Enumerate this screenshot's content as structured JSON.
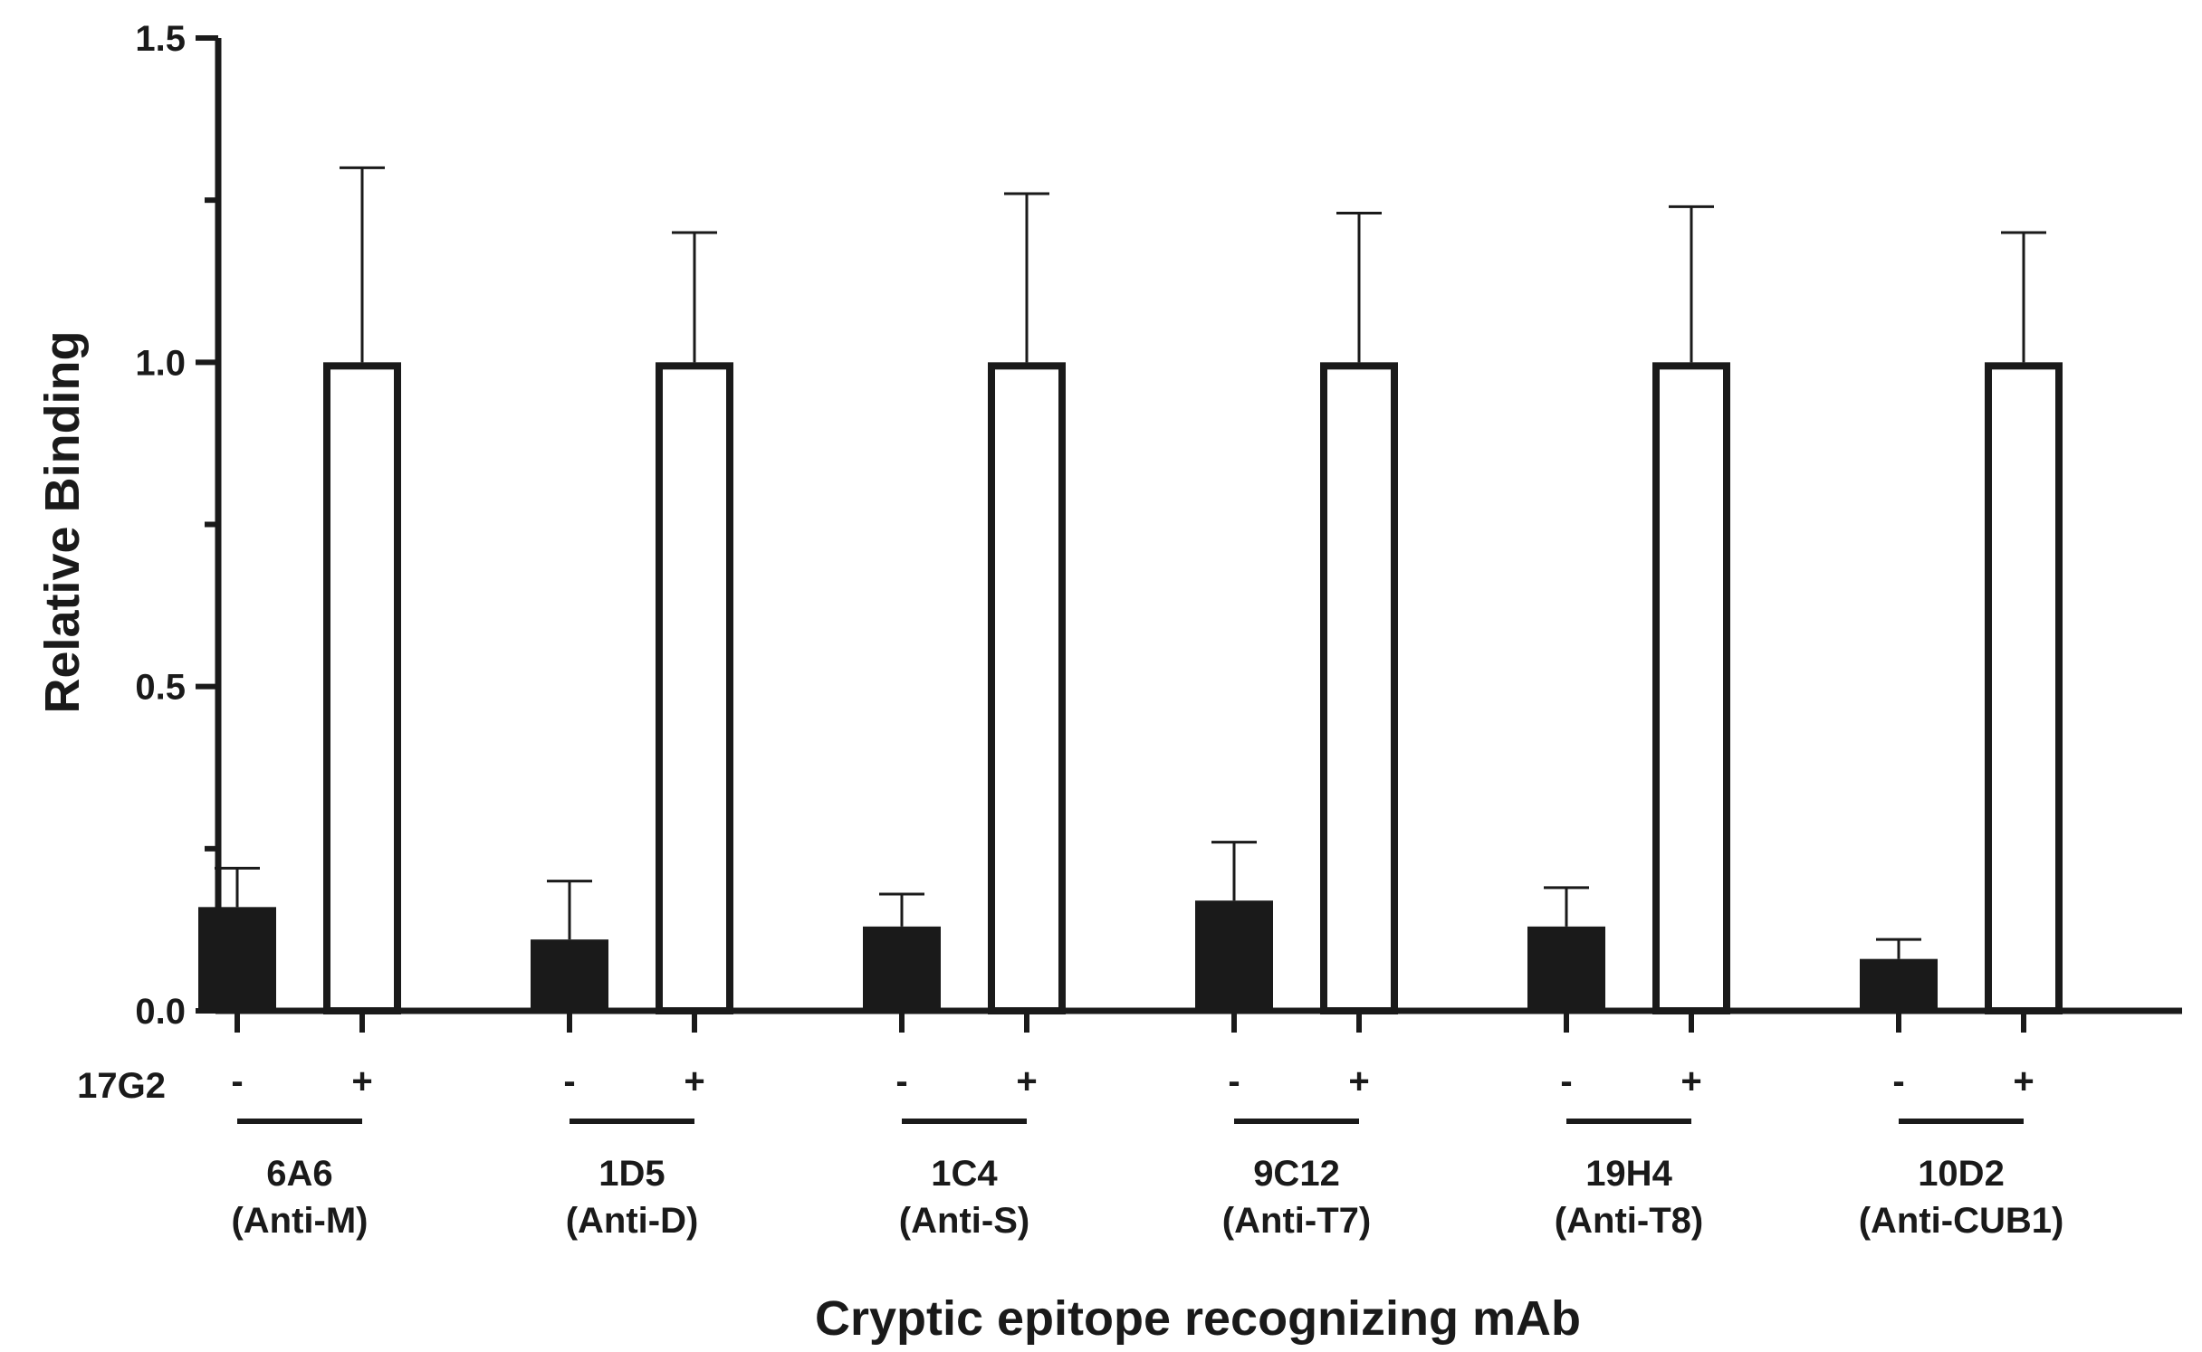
{
  "chart_data": {
    "type": "bar",
    "title": "",
    "xlabel": "Cryptic epitope recognizing mAb",
    "ylabel": "Relative Binding",
    "ylim": [
      0,
      1.5
    ],
    "yticks": [
      "0.0",
      "0.5",
      "1.0",
      "1.5"
    ],
    "grid": false,
    "legend": "none",
    "condition_label": "17G2",
    "conditions": [
      "-",
      "+"
    ],
    "groups": [
      {
        "name": "6A6",
        "sub": "(Anti-M)"
      },
      {
        "name": "1D5",
        "sub": "(Anti-D)"
      },
      {
        "name": "1C4",
        "sub": "(Anti-S)"
      },
      {
        "name": "9C12",
        "sub": "(Anti-T7)"
      },
      {
        "name": "19H4",
        "sub": "(Anti-T8)"
      },
      {
        "name": "10D2",
        "sub": "(Anti-CUB1)"
      }
    ],
    "series": [
      {
        "condition": "-",
        "fill": "#1a1a1a",
        "values": [
          0.16,
          0.11,
          0.13,
          0.17,
          0.13,
          0.08
        ],
        "errors": [
          0.06,
          0.09,
          0.05,
          0.09,
          0.06,
          0.03
        ]
      },
      {
        "condition": "+",
        "fill": "#ffffff",
        "values": [
          1.0,
          1.0,
          1.0,
          1.0,
          1.0,
          1.0
        ],
        "errors": [
          0.3,
          0.2,
          0.26,
          0.23,
          0.24,
          0.2
        ]
      }
    ]
  },
  "colors": {
    "ink": "#1a1a1a",
    "background": "#ffffff"
  }
}
